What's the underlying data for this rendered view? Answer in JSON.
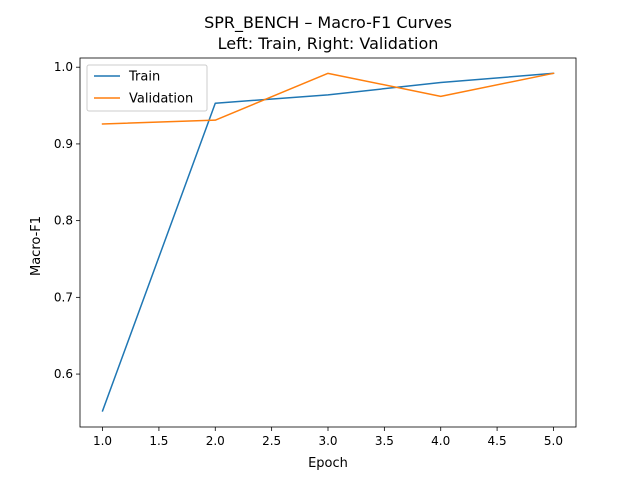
{
  "chart_data": {
    "type": "line",
    "title": "SPR_BENCH – Macro-F1 Curves",
    "subtitle": "Left: Train, Right: Validation",
    "xlabel": "Epoch",
    "ylabel": "Macro-F1",
    "x": [
      1,
      2,
      3,
      4,
      5
    ],
    "xlim": [
      0.8,
      5.2
    ],
    "ylim": [
      0.531,
      1.012
    ],
    "xticks": [
      "1.0",
      "1.5",
      "2.0",
      "2.5",
      "3.0",
      "3.5",
      "4.0",
      "4.5",
      "5.0"
    ],
    "yticks": [
      "0.6",
      "0.7",
      "0.8",
      "0.9",
      "1.0"
    ],
    "grid": false,
    "legend_position": "top-left",
    "series": [
      {
        "name": "Train",
        "color": "#1f77b4",
        "values": [
          0.552,
          0.953,
          0.964,
          0.98,
          0.992
        ]
      },
      {
        "name": "Validation",
        "color": "#ff7f0e",
        "values": [
          0.926,
          0.931,
          0.992,
          0.962,
          0.992
        ]
      }
    ]
  }
}
